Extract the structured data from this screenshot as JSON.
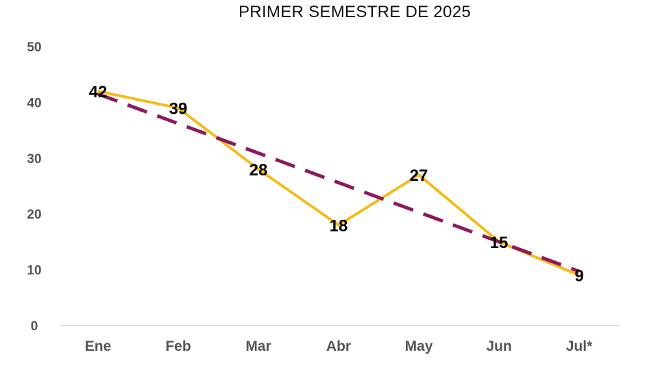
{
  "chart_data": {
    "type": "line",
    "title": "PRIMER SEMESTRE DE 2025",
    "xlabel": "",
    "ylabel": "",
    "categories": [
      "Ene",
      "Feb",
      "Mar",
      "Abr",
      "May",
      "Jun",
      "Jul*"
    ],
    "ylim": [
      0,
      50
    ],
    "yticks": [
      0,
      10,
      20,
      30,
      40,
      50
    ],
    "grid": false,
    "legend": "none",
    "series": [
      {
        "values": [
          42,
          39,
          28,
          18,
          27,
          15,
          9
        ],
        "data_labels": [
          "42",
          "39",
          "28",
          "18",
          "27",
          "15",
          "9"
        ],
        "color": "#f5bb1a",
        "style": "solid"
      },
      {
        "values": [
          41.5,
          36.2,
          30.9,
          25.6,
          20.3,
          15.0,
          9.7
        ],
        "color": "#8b1a5c",
        "style": "dashed",
        "role": "trendline"
      }
    ]
  }
}
